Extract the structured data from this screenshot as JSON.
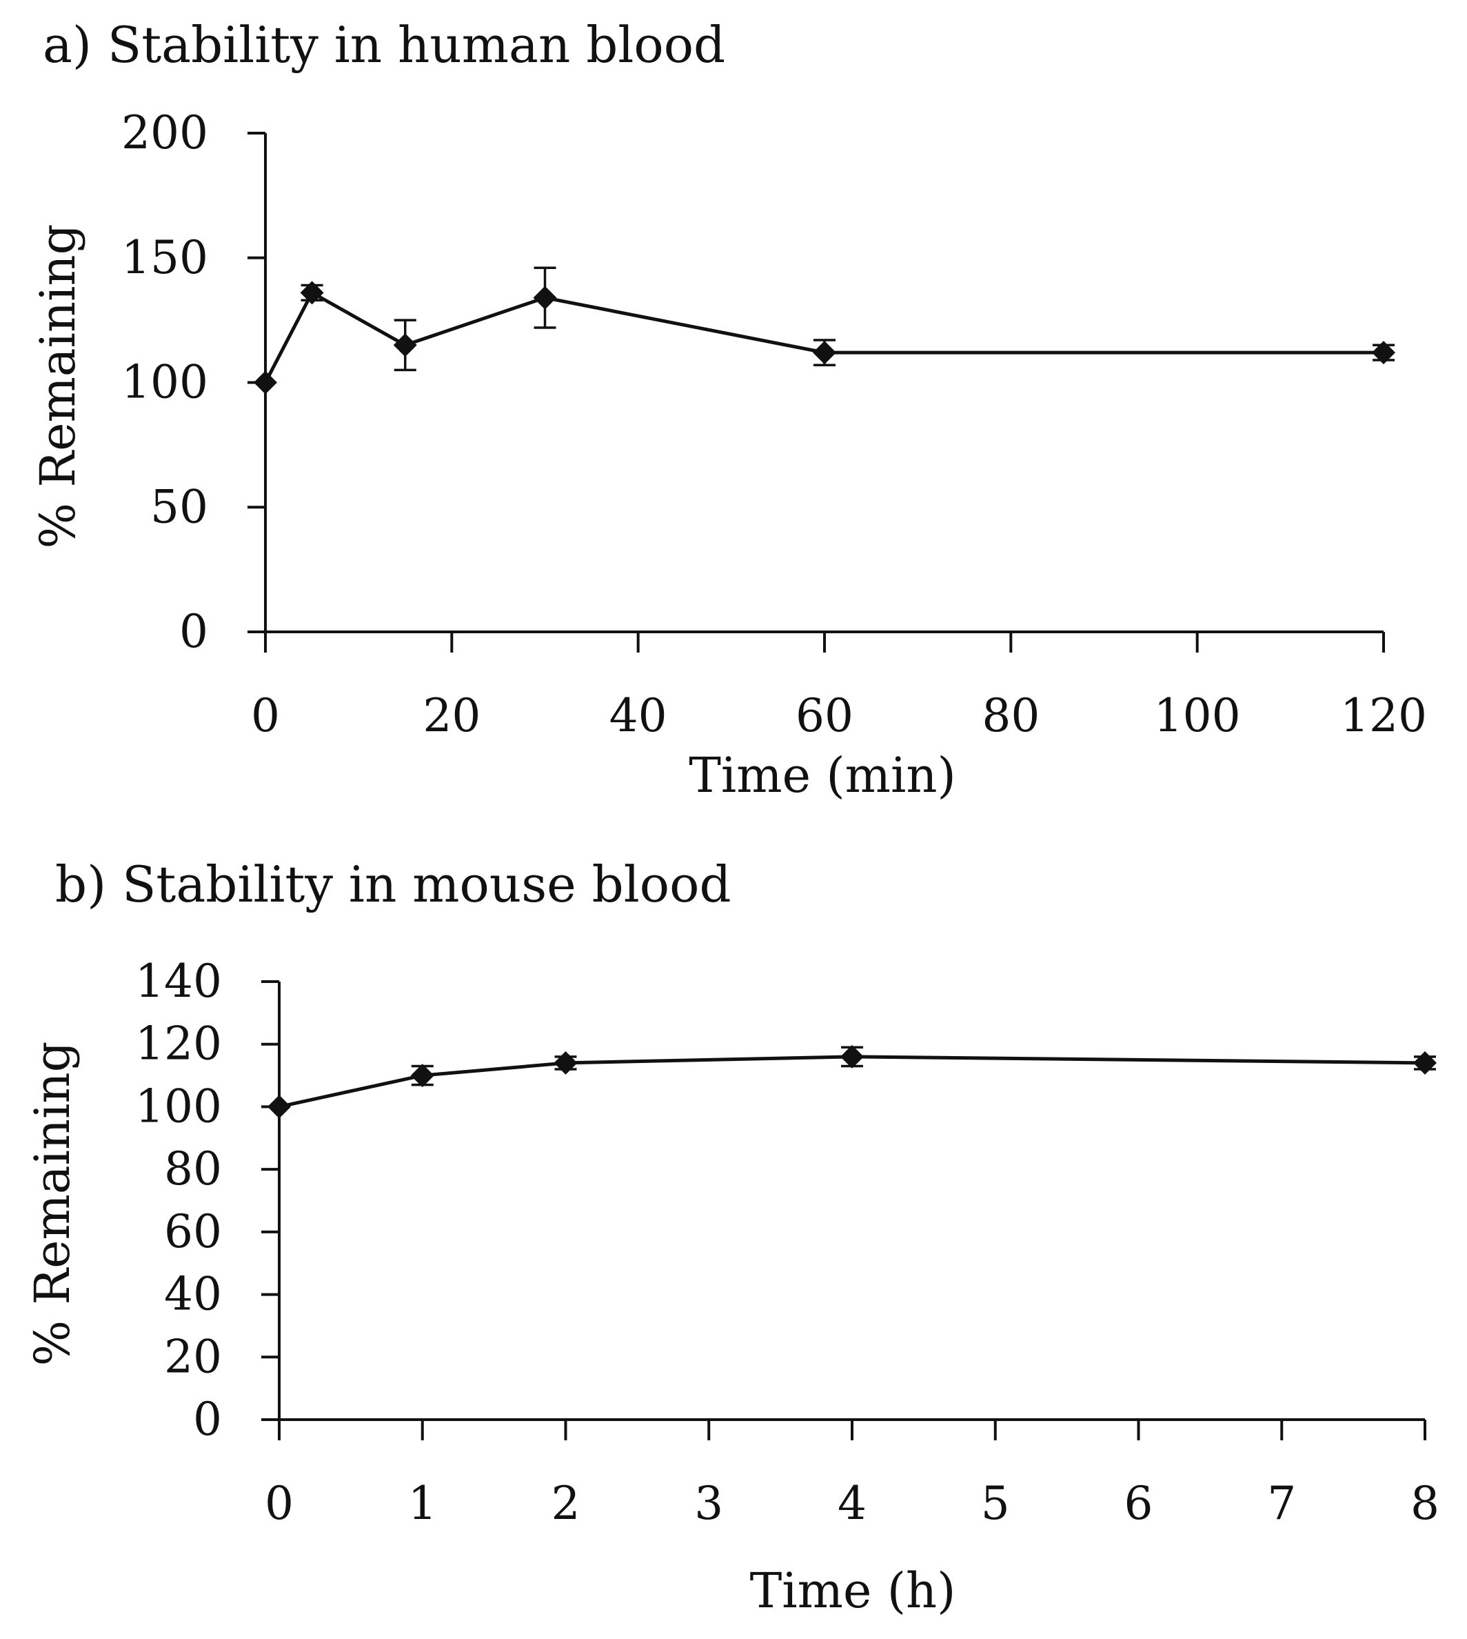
{
  "chart_data": [
    {
      "id": "a",
      "type": "line",
      "title": "a) Stability in human blood",
      "xlabel": "Time (min)",
      "ylabel": "% Remaining",
      "xlim": [
        0,
        120
      ],
      "ylim": [
        0,
        200
      ],
      "xticks": [
        0,
        20,
        40,
        60,
        80,
        100,
        120
      ],
      "yticks": [
        0,
        50,
        100,
        150,
        200
      ],
      "x": [
        0,
        5,
        15,
        30,
        60,
        120
      ],
      "series": [
        {
          "name": "% Remaining",
          "values": [
            100,
            136,
            115,
            134,
            112,
            112
          ],
          "errors": [
            0,
            3,
            10,
            12,
            5,
            3
          ]
        }
      ]
    },
    {
      "id": "b",
      "type": "line",
      "title": "b) Stability in mouse blood",
      "xlabel": "Time (h)",
      "ylabel": "% Remaining",
      "xlim": [
        0,
        8
      ],
      "ylim": [
        0,
        140
      ],
      "xticks": [
        0,
        1,
        2,
        3,
        4,
        5,
        6,
        7,
        8
      ],
      "yticks": [
        0,
        20,
        40,
        60,
        80,
        100,
        120,
        140
      ],
      "x": [
        0,
        1,
        2,
        4,
        8
      ],
      "series": [
        {
          "name": "% Remaining",
          "values": [
            100,
            110,
            114,
            116,
            114
          ],
          "errors": [
            0,
            3,
            2,
            3,
            2
          ]
        }
      ]
    }
  ]
}
